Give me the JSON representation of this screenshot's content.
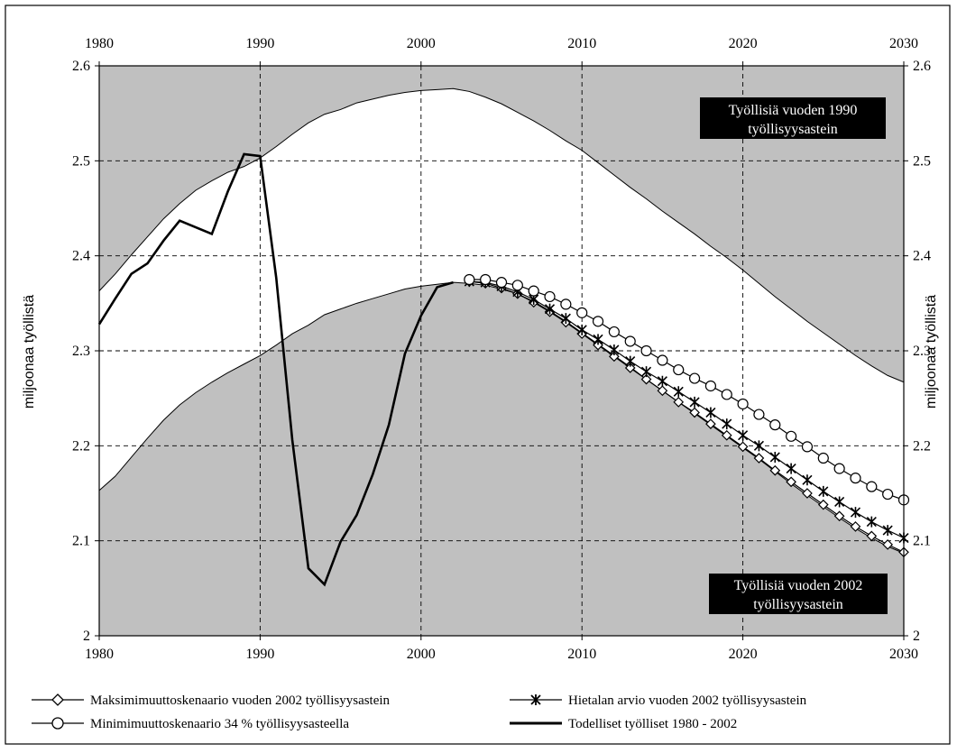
{
  "chart_data": {
    "type": "line",
    "title": "",
    "ylabel_left": "miljoonaa työllistä",
    "ylabel_right": "miljoonaa työllistä",
    "xlim": [
      1980,
      2030
    ],
    "ylim": [
      2,
      2.6
    ],
    "xticks": [
      1980,
      1990,
      2000,
      2010,
      2020,
      2030
    ],
    "xtick_labels": [
      "1980",
      "1990",
      "2000",
      "2010",
      "2020",
      "2030"
    ],
    "yticks": [
      2,
      2.1,
      2.2,
      2.3,
      2.4,
      2.5,
      2.6
    ],
    "ytick_labels": [
      "2",
      "2.1",
      "2.2",
      "2.3",
      "2.4",
      "2.5",
      "2.6"
    ],
    "grid": "dashed",
    "legend_position": "bottom",
    "colors": {
      "band": "#c0c0c0",
      "line": "#000000",
      "box": "#000000",
      "box_text": "#ffffff"
    },
    "annotations": [
      {
        "lines": [
          "Työllisiä vuoden 1990",
          "työllisyysastein"
        ],
        "position": "top-right"
      },
      {
        "lines": [
          "Työllisiä vuoden 2002",
          "työllisyysastein"
        ],
        "position": "bottom-right"
      }
    ],
    "areas": [
      {
        "label": "Työllisiä vuoden 1990 työllisyysastein",
        "x": [
          1980,
          1981,
          1982,
          1983,
          1984,
          1985,
          1986,
          1987,
          1988,
          1989,
          1990,
          1991,
          1992,
          1993,
          1994,
          1995,
          1996,
          1997,
          1998,
          1999,
          2000,
          2001,
          2002,
          2003,
          2004,
          2005,
          2006,
          2007,
          2008,
          2009,
          2010,
          2011,
          2012,
          2013,
          2014,
          2015,
          2016,
          2017,
          2018,
          2019,
          2020,
          2021,
          2022,
          2023,
          2024,
          2025,
          2026,
          2027,
          2028,
          2029,
          2030
        ],
        "y": [
          2.363,
          2.381,
          2.401,
          2.42,
          2.439,
          2.455,
          2.469,
          2.479,
          2.488,
          2.494,
          2.503,
          2.515,
          2.528,
          2.54,
          2.549,
          2.554,
          2.561,
          2.565,
          2.569,
          2.572,
          2.574,
          2.575,
          2.576,
          2.573,
          2.567,
          2.56,
          2.551,
          2.542,
          2.532,
          2.521,
          2.511,
          2.498,
          2.485,
          2.472,
          2.46,
          2.447,
          2.435,
          2.423,
          2.41,
          2.398,
          2.385,
          2.371,
          2.357,
          2.344,
          2.331,
          2.319,
          2.307,
          2.295,
          2.284,
          2.274,
          2.267
        ]
      },
      {
        "label": "Työllisiä vuoden 2002 työllisyysastein",
        "x": [
          1980,
          1981,
          1982,
          1983,
          1984,
          1985,
          1986,
          1987,
          1988,
          1989,
          1990,
          1991,
          1992,
          1993,
          1994,
          1995,
          1996,
          1997,
          1998,
          1999,
          2000,
          2001,
          2002,
          2003,
          2004,
          2005,
          2006,
          2007,
          2008,
          2009,
          2010,
          2011,
          2012,
          2013,
          2014,
          2015,
          2016,
          2017,
          2018,
          2019,
          2020,
          2021,
          2022,
          2023,
          2024,
          2025,
          2026,
          2027,
          2028,
          2029,
          2030
        ],
        "y": [
          2.153,
          2.168,
          2.188,
          2.208,
          2.227,
          2.243,
          2.256,
          2.267,
          2.277,
          2.286,
          2.295,
          2.306,
          2.318,
          2.327,
          2.338,
          2.344,
          2.35,
          2.355,
          2.36,
          2.365,
          2.368,
          2.37,
          2.372,
          2.371,
          2.369,
          2.365,
          2.36,
          2.352,
          2.342,
          2.331,
          2.319,
          2.307,
          2.295,
          2.283,
          2.27,
          2.258,
          2.246,
          2.234,
          2.222,
          2.21,
          2.198,
          2.186,
          2.173,
          2.16,
          2.148,
          2.136,
          2.124,
          2.113,
          2.103,
          2.094,
          2.087
        ]
      }
    ],
    "series": [
      {
        "name": "Maksimimuuttoskenaario vuoden 2002 työllisyysastein",
        "marker": "diamond",
        "x": [
          2003,
          2004,
          2005,
          2006,
          2007,
          2008,
          2009,
          2010,
          2011,
          2012,
          2013,
          2014,
          2015,
          2016,
          2017,
          2018,
          2019,
          2020,
          2021,
          2022,
          2023,
          2024,
          2025,
          2026,
          2027,
          2028,
          2029,
          2030
        ],
        "y": [
          2.373,
          2.371,
          2.366,
          2.36,
          2.351,
          2.341,
          2.33,
          2.318,
          2.306,
          2.294,
          2.282,
          2.27,
          2.258,
          2.246,
          2.235,
          2.223,
          2.211,
          2.199,
          2.187,
          2.174,
          2.162,
          2.15,
          2.138,
          2.126,
          2.115,
          2.105,
          2.096,
          2.088
        ]
      },
      {
        "name": "Hietalan arvio vuoden 2002 työllisyysastein",
        "marker": "star",
        "x": [
          2003,
          2004,
          2005,
          2006,
          2007,
          2008,
          2009,
          2010,
          2011,
          2012,
          2013,
          2014,
          2015,
          2016,
          2017,
          2018,
          2019,
          2020,
          2021,
          2022,
          2023,
          2024,
          2025,
          2026,
          2027,
          2028,
          2029,
          2030
        ],
        "y": [
          2.373,
          2.372,
          2.368,
          2.362,
          2.354,
          2.344,
          2.334,
          2.322,
          2.312,
          2.301,
          2.289,
          2.278,
          2.268,
          2.257,
          2.246,
          2.235,
          2.223,
          2.211,
          2.2,
          2.188,
          2.176,
          2.164,
          2.152,
          2.141,
          2.13,
          2.12,
          2.111,
          2.103
        ]
      },
      {
        "name": "Minimimuuttoskenaario 34 % työllisyysasteella",
        "marker": "circle",
        "x": [
          2003,
          2004,
          2005,
          2006,
          2007,
          2008,
          2009,
          2010,
          2011,
          2012,
          2013,
          2014,
          2015,
          2016,
          2017,
          2018,
          2019,
          2020,
          2021,
          2022,
          2023,
          2024,
          2025,
          2026,
          2027,
          2028,
          2029,
          2030
        ],
        "y": [
          2.375,
          2.375,
          2.372,
          2.369,
          2.363,
          2.357,
          2.349,
          2.34,
          2.331,
          2.32,
          2.31,
          2.3,
          2.29,
          2.28,
          2.271,
          2.263,
          2.254,
          2.244,
          2.233,
          2.222,
          2.21,
          2.199,
          2.187,
          2.176,
          2.166,
          2.157,
          2.149,
          2.143
        ]
      },
      {
        "name": "Todelliset työlliset 1980 - 2002",
        "marker": "none",
        "x": [
          1980,
          1981,
          1982,
          1983,
          1984,
          1985,
          1986,
          1987,
          1988,
          1989,
          1990,
          1991,
          1992,
          1993,
          1994,
          1995,
          1996,
          1997,
          1998,
          1999,
          2000,
          2001,
          2002
        ],
        "y": [
          2.328,
          2.355,
          2.381,
          2.392,
          2.416,
          2.437,
          2.43,
          2.423,
          2.468,
          2.507,
          2.505,
          2.377,
          2.206,
          2.071,
          2.054,
          2.099,
          2.127,
          2.17,
          2.222,
          2.297,
          2.337,
          2.367,
          2.372
        ]
      }
    ]
  }
}
